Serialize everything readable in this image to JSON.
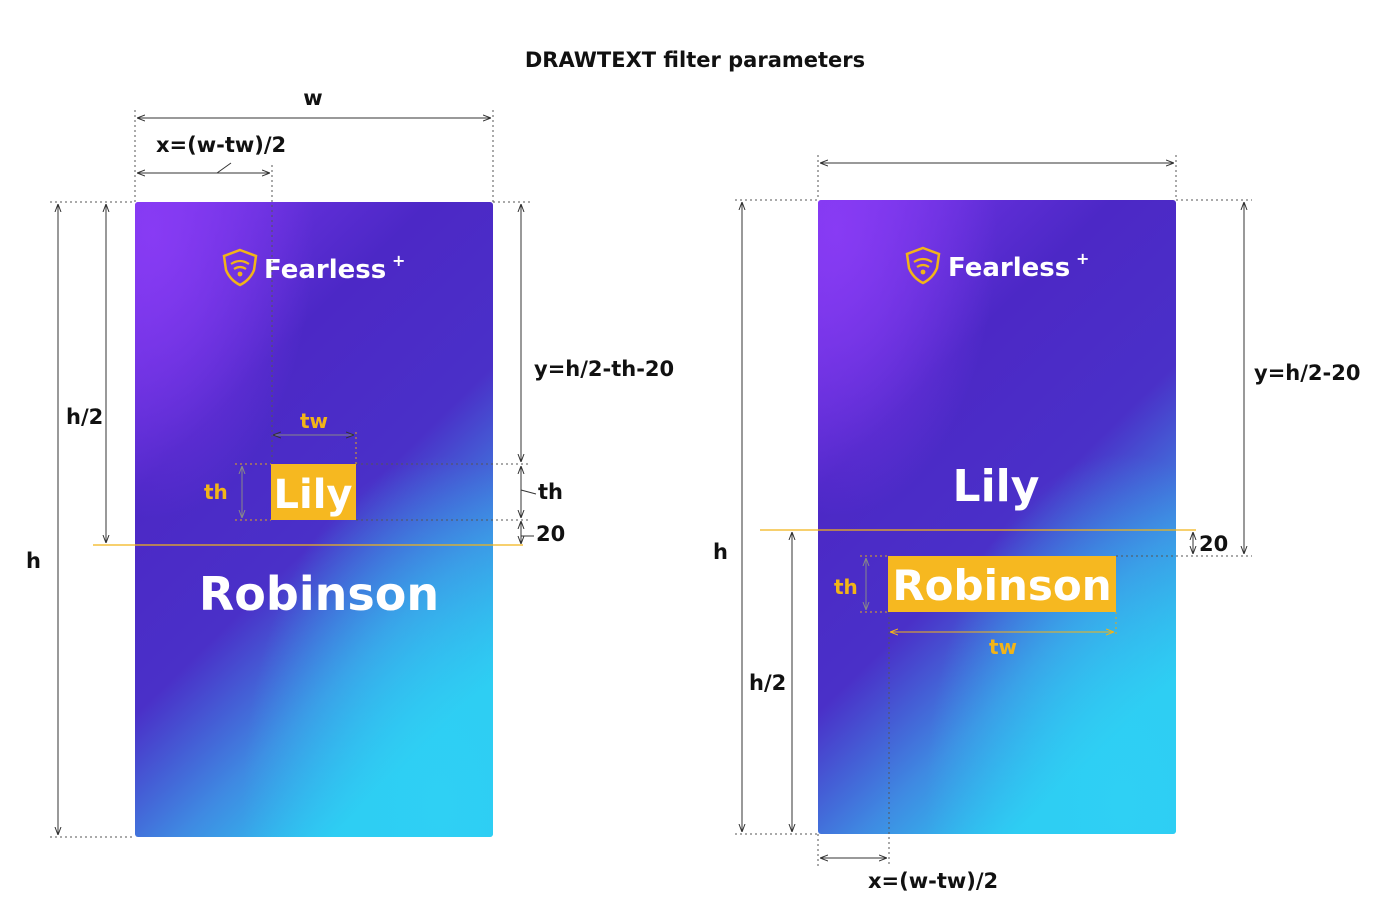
{
  "title": "DRAWTEXT filter parameters",
  "colors": {
    "card_top": "#7a35ec",
    "card_mid": "#4a28c4",
    "card_bottom": "#2ec6f0",
    "highlight": "#f6b820",
    "text_label": "#111111",
    "guide_yellow": "#f2b418"
  },
  "brand": {
    "name": "Fearless",
    "superscript": "+",
    "icon": "shield-wave-icon"
  },
  "left": {
    "w_label": "w",
    "x_label": "x=(w-tw)/2",
    "h_label": "h",
    "half_h_label": "h/2",
    "y_label": "y=h/2-th-20",
    "tw_label": "tw",
    "th_label": "th",
    "th_right_label": "th",
    "gap_label": "20",
    "name_top": "Lily",
    "name_bottom": "Robinson"
  },
  "right": {
    "h_label": "h",
    "half_h_label": "h/2",
    "y_label": "y=h/2-20",
    "gap_label": "20",
    "th_label": "th",
    "tw_label": "tw",
    "x_label": "x=(w-tw)/2",
    "name_top": "Lily",
    "name_bottom": "Robinson"
  }
}
